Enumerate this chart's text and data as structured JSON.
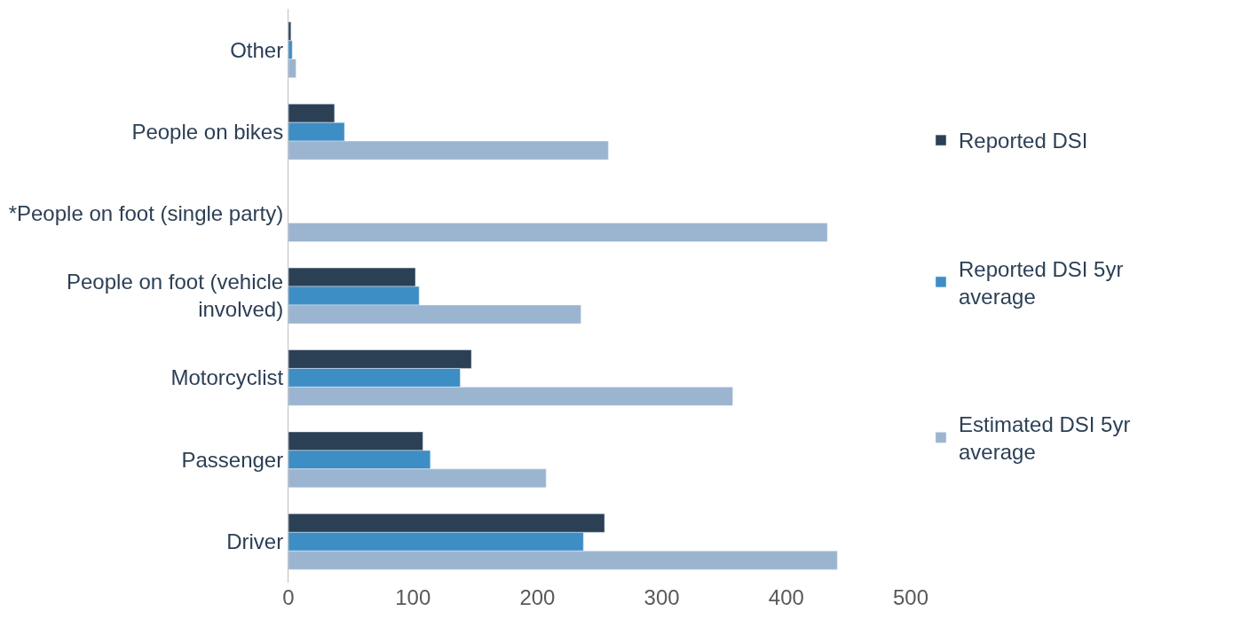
{
  "chart_data": {
    "type": "bar",
    "orientation": "horizontal",
    "categories": [
      "Other",
      "People on bikes",
      "*People on foot (single party)",
      "People on foot (vehicle involved)",
      "Motorcyclist",
      "Passenger",
      "Driver"
    ],
    "series": [
      {
        "name": "Reported DSI",
        "color": "#2b3f55",
        "values": [
          2,
          37,
          null,
          102,
          147,
          108,
          254
        ]
      },
      {
        "name": "Reported DSI 5yr average",
        "color": "#3d8ec4",
        "values": [
          3,
          45,
          null,
          105,
          138,
          114,
          237
        ]
      },
      {
        "name": "Estimated DSI 5yr average",
        "color": "#9bb4d0",
        "values": [
          6,
          257,
          433,
          235,
          357,
          207,
          441
        ]
      }
    ],
    "xlim": [
      0,
      500
    ],
    "xticks": [
      0,
      100,
      200,
      300,
      400,
      500
    ],
    "legend": "right"
  }
}
